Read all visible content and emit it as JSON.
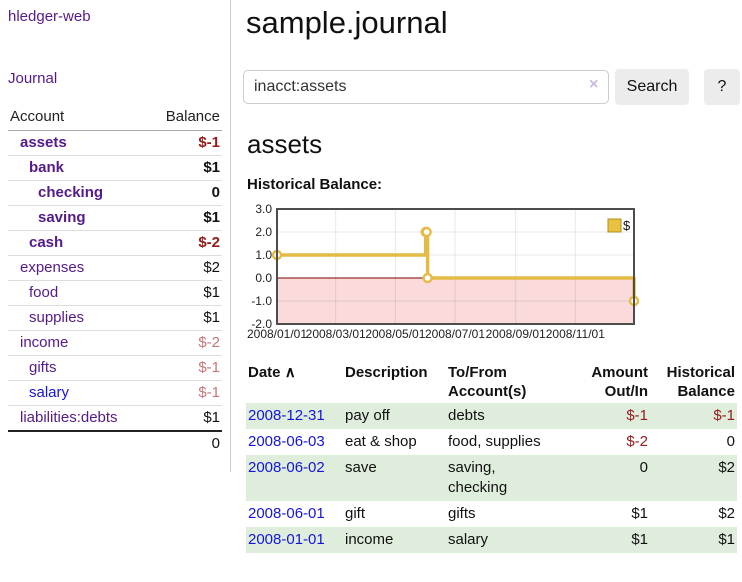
{
  "sidebar": {
    "brand": "hledger-web",
    "nav": {
      "journal": "Journal"
    },
    "table": {
      "account_header": "Account",
      "balance_header": "Balance"
    },
    "accounts": [
      {
        "name": "assets",
        "indent": 0,
        "balance": "$-1",
        "bold": true,
        "balance_tone": "neg-strong",
        "link_tone": "purple"
      },
      {
        "name": "bank",
        "indent": 1,
        "balance": "$1",
        "bold": true,
        "balance_tone": "",
        "link_tone": "purple"
      },
      {
        "name": "checking",
        "indent": 2,
        "balance": "0",
        "bold": true,
        "balance_tone": "",
        "link_tone": "purple"
      },
      {
        "name": "saving",
        "indent": 2,
        "balance": "$1",
        "bold": true,
        "balance_tone": "",
        "link_tone": "purple"
      },
      {
        "name": "cash",
        "indent": 1,
        "balance": "$-2",
        "bold": true,
        "balance_tone": "neg-strong",
        "link_tone": "purple"
      },
      {
        "name": "expenses",
        "indent": 0,
        "balance": "$2",
        "bold": false,
        "balance_tone": "",
        "link_tone": "purple"
      },
      {
        "name": "food",
        "indent": 1,
        "balance": "$1",
        "bold": false,
        "balance_tone": "",
        "link_tone": "purple"
      },
      {
        "name": "supplies",
        "indent": 1,
        "balance": "$1",
        "bold": false,
        "balance_tone": "",
        "link_tone": "purple"
      },
      {
        "name": "income",
        "indent": 0,
        "balance": "$-2",
        "bold": false,
        "balance_tone": "neg-soft",
        "link_tone": "purple"
      },
      {
        "name": "gifts",
        "indent": 1,
        "balance": "$-1",
        "bold": false,
        "balance_tone": "neg-soft",
        "link_tone": "purple"
      },
      {
        "name": "salary",
        "indent": 1,
        "balance": "$-1",
        "bold": false,
        "balance_tone": "neg-soft",
        "link_tone": "blue"
      },
      {
        "name": "liabilities:debts",
        "indent": 0,
        "balance": "$1",
        "bold": false,
        "balance_tone": "",
        "link_tone": "purple"
      }
    ],
    "total": "0"
  },
  "main": {
    "title": "sample.journal",
    "search": {
      "value": "inacct:assets",
      "clear_icon": "×",
      "search_button": "Search",
      "help_button": "?"
    },
    "account_title": "assets",
    "chart_heading": "Historical Balance:"
  },
  "chart_data": {
    "type": "line",
    "step": true,
    "title": "Historical Balance",
    "x_range": [
      "2008-01-01",
      "2008-12-31"
    ],
    "ylim": [
      -2,
      3
    ],
    "y_ticks": [
      "3.0",
      "2.0",
      "1.0",
      "0.0",
      "-1.0",
      "-2.0"
    ],
    "x_ticks": [
      "2008/01/01",
      "2008/03/01",
      "2008/05/01",
      "2008/07/01",
      "2008/09/01",
      "2008/11/01"
    ],
    "legend": {
      "label": "$",
      "position": "top-right"
    },
    "series": [
      {
        "name": "$",
        "color": "#e4bb45",
        "points": [
          {
            "x": "2008-01-01",
            "y": 1
          },
          {
            "x": "2008-06-01",
            "y": 2
          },
          {
            "x": "2008-06-02",
            "y": 2
          },
          {
            "x": "2008-06-03",
            "y": 0
          },
          {
            "x": "2008-12-31",
            "y": -1
          }
        ]
      }
    ],
    "negative_region": {
      "from": 0,
      "to": -2,
      "color": "#fadada",
      "zero_line_color": "#7d0000"
    },
    "grid": true
  },
  "register": {
    "columns": [
      "Date",
      "Description",
      "To/From Account(s)",
      "Amount Out/In",
      "Historical Balance"
    ],
    "sort": {
      "column": "Date",
      "direction": "asc",
      "icon": "∧"
    },
    "rows": [
      {
        "date": "2008-12-31",
        "description": "pay off",
        "accounts": "debts",
        "amount": "$-1",
        "balance": "$-1",
        "amount_tone": "neg-strong",
        "balance_tone": "neg-strong"
      },
      {
        "date": "2008-06-03",
        "description": "eat & shop",
        "accounts": "food, supplies",
        "amount": "$-2",
        "balance": "0",
        "amount_tone": "neg-strong",
        "balance_tone": ""
      },
      {
        "date": "2008-06-02",
        "description": "save",
        "accounts": "saving, checking",
        "amount": "0",
        "balance": "$2",
        "amount_tone": "",
        "balance_tone": ""
      },
      {
        "date": "2008-06-01",
        "description": "gift",
        "accounts": "gifts",
        "amount": "$1",
        "balance": "$2",
        "amount_tone": "",
        "balance_tone": ""
      },
      {
        "date": "2008-01-01",
        "description": "income",
        "accounts": "salary",
        "amount": "$1",
        "balance": "$1",
        "amount_tone": "",
        "balance_tone": ""
      }
    ]
  },
  "colors": {
    "link_purple": "#551a8b",
    "link_blue": "#1414dd",
    "negative_strong": "#951b1b",
    "negative_soft": "#c67878",
    "row_stripe_green": "#dfeedc",
    "chart_line_gold": "#e4bb45",
    "chart_negative_pink": "#fadada",
    "chart_zero_line": "#7d0000"
  }
}
